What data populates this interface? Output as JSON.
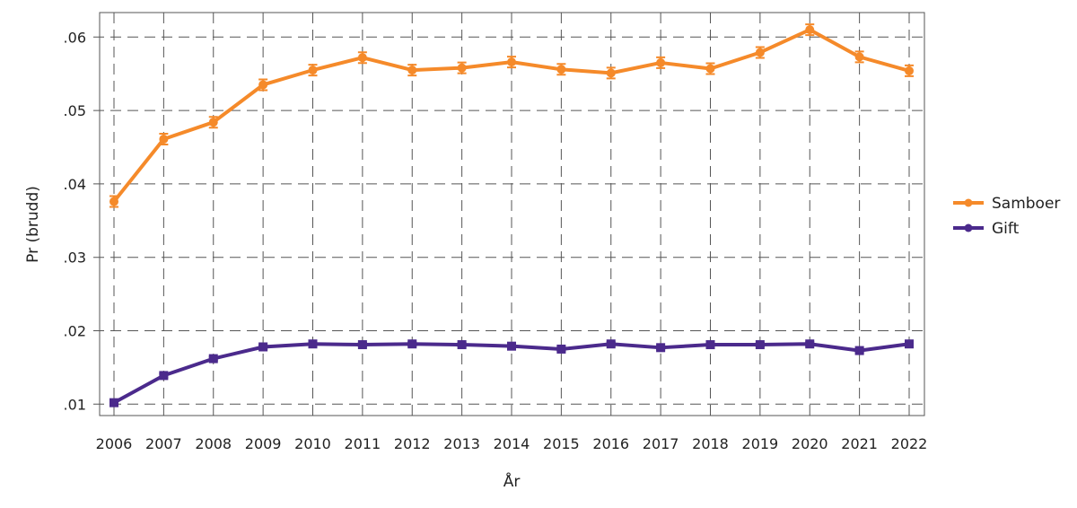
{
  "chart_data": {
    "type": "line",
    "title": "",
    "xlabel": "År",
    "ylabel": "Pr (brudd)",
    "x": [
      2006,
      2007,
      2008,
      2009,
      2010,
      2011,
      2012,
      2013,
      2014,
      2015,
      2016,
      2017,
      2018,
      2019,
      2020,
      2021,
      2022
    ],
    "ylim": [
      0.0085,
      0.0635
    ],
    "yticks": [
      0.01,
      0.02,
      0.03,
      0.04,
      0.05,
      0.06
    ],
    "ytick_labels": [
      ".01",
      ".02",
      ".03",
      ".04",
      ".05",
      ".06"
    ],
    "grid": true,
    "legend_position": "right",
    "series": [
      {
        "name": "Samboer",
        "color": "#f58a2a",
        "marker": "circle",
        "error_bars": true,
        "values": [
          0.0376,
          0.0461,
          0.0484,
          0.0535,
          0.0555,
          0.0572,
          0.0555,
          0.0558,
          0.0566,
          0.0556,
          0.0551,
          0.0565,
          0.0557,
          0.0579,
          0.061,
          0.0573,
          0.0554
        ]
      },
      {
        "name": "Gift",
        "color": "#4b2a8c",
        "marker": "square",
        "error_bars": true,
        "values": [
          0.0102,
          0.0139,
          0.0162,
          0.0178,
          0.0182,
          0.0181,
          0.0182,
          0.0181,
          0.0179,
          0.0175,
          0.0182,
          0.0177,
          0.0181,
          0.0181,
          0.0182,
          0.0173,
          0.0182
        ]
      }
    ]
  }
}
